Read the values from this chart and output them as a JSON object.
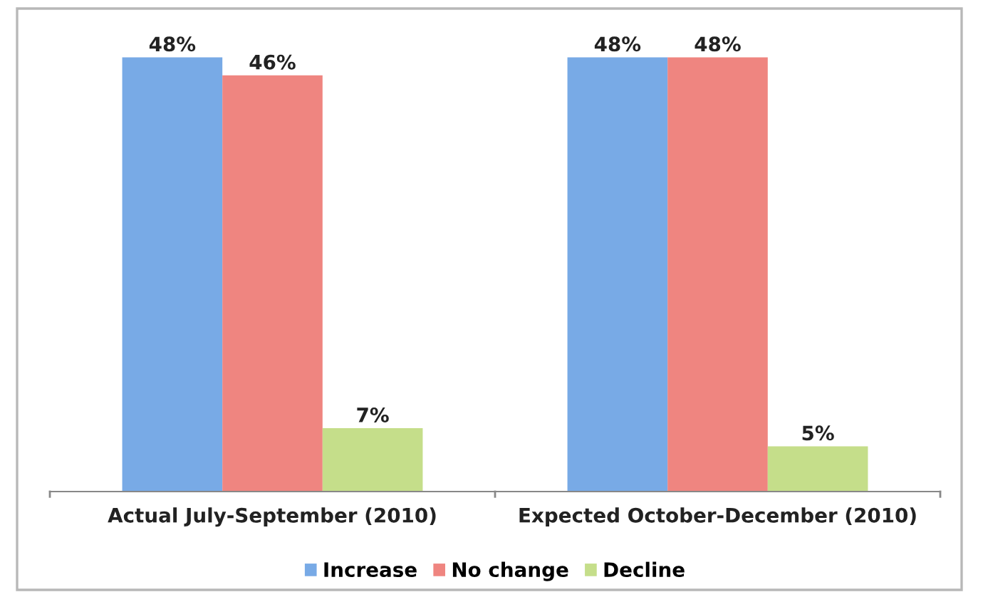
{
  "chart_data": {
    "type": "bar",
    "categories": [
      "Actual July-September (2010)",
      "Expected October-December (2010)"
    ],
    "series": [
      {
        "name": "Increase",
        "color": "#78aae6",
        "values": [
          48,
          48
        ],
        "value_labels": [
          "48%",
          "48%"
        ]
      },
      {
        "name": "No change",
        "color": "#ef8580",
        "values": [
          46,
          48
        ],
        "value_labels": [
          "46%",
          "48%"
        ]
      },
      {
        "name": "Decline",
        "color": "#c5de8a",
        "values": [
          7,
          5
        ],
        "value_labels": [
          "7%",
          "5%"
        ]
      }
    ],
    "legend": "bottom",
    "grid": false
  }
}
